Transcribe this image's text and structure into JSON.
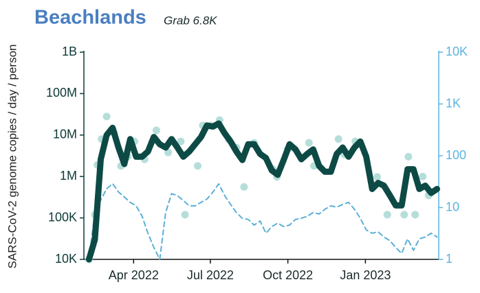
{
  "chart_data": {
    "type": "line",
    "title": "Beachlands",
    "subtitle": "Grab 6.8K",
    "y_label": "SARS-CoV-2 genome copies  / day / person",
    "log_y": true,
    "log_y2": true,
    "xlim": [
      "2022-02-01",
      "2023-03-29"
    ],
    "xticks": [
      {
        "value": "2022-04-01",
        "label": "Apr 2022"
      },
      {
        "value": "2022-07-01",
        "label": "Jul 2022"
      },
      {
        "value": "2022-10-01",
        "label": "Oct 2022"
      },
      {
        "value": "2023-01-01",
        "label": "Jan 2023"
      }
    ],
    "ylim": [
      10000,
      1000000000
    ],
    "yticks": [
      {
        "value": 10000,
        "label": "10K"
      },
      {
        "value": 100000,
        "label": "100K"
      },
      {
        "value": 1000000,
        "label": "1M"
      },
      {
        "value": 10000000,
        "label": "10M"
      },
      {
        "value": 100000000,
        "label": "100M"
      },
      {
        "value": 1000000000,
        "label": "1B"
      }
    ],
    "y2lim": [
      1,
      10000
    ],
    "y2ticks": [
      1,
      10,
      100,
      {
        "value": 1000,
        "label": "1K"
      },
      {
        "value": 10000,
        "label": "10K"
      }
    ],
    "axis_color": "#0d3a37",
    "y2_color": "#5ab4e0",
    "series": [
      {
        "style": "dashed",
        "axis": "y2",
        "color": "#5aafd6",
        "x": [
          "2022-02-07",
          "2022-02-14",
          "2022-02-21",
          "2022-02-28",
          "2022-03-07",
          "2022-03-14",
          "2022-03-21",
          "2022-03-28",
          "2022-04-04",
          "2022-04-11",
          "2022-04-18",
          "2022-04-25",
          "2022-05-02",
          "2022-05-09",
          "2022-05-16",
          "2022-05-23",
          "2022-05-30",
          "2022-06-06",
          "2022-06-13",
          "2022-06-20",
          "2022-06-27",
          "2022-07-04",
          "2022-07-11",
          "2022-07-18",
          "2022-07-25",
          "2022-08-01",
          "2022-08-08",
          "2022-08-15",
          "2022-08-22",
          "2022-08-29",
          "2022-09-05",
          "2022-09-12",
          "2022-09-19",
          "2022-09-26",
          "2022-10-03",
          "2022-10-10",
          "2022-10-17",
          "2022-10-24",
          "2022-10-31",
          "2022-11-07",
          "2022-11-14",
          "2022-11-21",
          "2022-11-28",
          "2022-12-05",
          "2022-12-12",
          "2022-12-19",
          "2022-12-26",
          "2023-01-02",
          "2023-01-09",
          "2023-01-16",
          "2023-01-23",
          "2023-01-30",
          "2023-02-06",
          "2023-02-13",
          "2023-02-20",
          "2023-02-27",
          "2023-03-06",
          "2023-03-13",
          "2023-03-20",
          "2023-03-27"
        ],
        "values": [
          1,
          8,
          14,
          23,
          29,
          20,
          16,
          12.6,
          10.8,
          6.8,
          3.2,
          1.7,
          1,
          8,
          18.6,
          17,
          13.7,
          10.8,
          10.8,
          12.6,
          14.6,
          19.8,
          28.6,
          17,
          11.5,
          8,
          6.2,
          5.9,
          4.6,
          5.5,
          3.2,
          4.3,
          5,
          4.3,
          4.6,
          5.9,
          6.2,
          6.8,
          8,
          7.5,
          9.3,
          10.8,
          10.2,
          11.5,
          12.6,
          9.3,
          6.2,
          3.7,
          3.2,
          3.4,
          2.7,
          2.3,
          1.7,
          1.3,
          2.5,
          1.5,
          2.5,
          2.7,
          3.2,
          2.7
        ]
      },
      {
        "style": "points",
        "axis": "y",
        "color": "#a8d8d4",
        "x": [
          "2022-02-07",
          "2022-02-14",
          "2022-02-17",
          "2022-02-22",
          "2022-02-28",
          "2022-03-09",
          "2022-03-17",
          "2022-03-25",
          "2022-04-02",
          "2022-04-14",
          "2022-04-28",
          "2022-05-12",
          "2022-05-27",
          "2022-06-01",
          "2022-06-16",
          "2022-06-22",
          "2022-07-01",
          "2022-07-12",
          "2022-07-23",
          "2022-08-01",
          "2022-08-10",
          "2022-08-22",
          "2022-09-13",
          "2022-09-18",
          "2022-10-01",
          "2022-10-26",
          "2022-11-01",
          "2022-11-30",
          "2022-12-07",
          "2022-12-20",
          "2023-01-15",
          "2023-01-27",
          "2023-02-16",
          "2023-02-21",
          "2023-03-01",
          "2023-03-10",
          "2023-03-17"
        ],
        "values": [
          10000,
          120000,
          1900000,
          8000000,
          28000000,
          11000000,
          1800000,
          3000000,
          7000000,
          2600000,
          13000000,
          3800000,
          7000000,
          120000,
          1800000,
          17000000,
          17000000,
          23000000,
          7800000,
          5000000,
          560000,
          6500000,
          1500000,
          980000,
          4600000,
          6500000,
          1800000,
          8000000,
          3400000,
          7000000,
          980000,
          120000,
          120000,
          3000000,
          120000,
          1000000,
          350000
        ]
      },
      {
        "style": "line",
        "axis": "y",
        "color": "#0d4a45",
        "x": [
          "2022-02-07",
          "2022-02-14",
          "2022-02-21",
          "2022-02-28",
          "2022-03-07",
          "2022-03-14",
          "2022-03-21",
          "2022-03-28",
          "2022-04-04",
          "2022-04-11",
          "2022-04-18",
          "2022-04-25",
          "2022-05-02",
          "2022-05-09",
          "2022-05-16",
          "2022-05-23",
          "2022-05-30",
          "2022-06-06",
          "2022-06-13",
          "2022-06-20",
          "2022-06-27",
          "2022-07-04",
          "2022-07-11",
          "2022-07-18",
          "2022-07-25",
          "2022-08-01",
          "2022-08-08",
          "2022-08-15",
          "2022-08-22",
          "2022-08-29",
          "2022-09-05",
          "2022-09-12",
          "2022-09-19",
          "2022-09-26",
          "2022-10-03",
          "2022-10-10",
          "2022-10-17",
          "2022-10-24",
          "2022-10-31",
          "2022-11-07",
          "2022-11-14",
          "2022-11-21",
          "2022-11-28",
          "2022-12-05",
          "2022-12-12",
          "2022-12-19",
          "2022-12-26",
          "2023-01-02",
          "2023-01-09",
          "2023-01-16",
          "2023-01-23",
          "2023-01-30",
          "2023-02-06",
          "2023-02-13",
          "2023-02-20",
          "2023-02-27",
          "2023-03-06",
          "2023-03-13",
          "2023-03-20",
          "2023-03-27"
        ],
        "values": [
          10000,
          30000,
          2600000,
          10000000,
          15000000,
          5000000,
          2000000,
          8000000,
          3000000,
          3000000,
          4000000,
          9000000,
          6000000,
          5000000,
          8000000,
          5000000,
          3000000,
          4000000,
          6000000,
          9000000,
          17000000,
          16000000,
          19000000,
          11000000,
          7000000,
          4000000,
          2500000,
          6000000,
          6000000,
          3500000,
          2800000,
          1400000,
          1100000,
          2500000,
          6000000,
          4500000,
          2600000,
          3500000,
          4500000,
          1800000,
          1300000,
          1300000,
          3500000,
          5000000,
          3000000,
          5000000,
          7000000,
          3000000,
          500000,
          700000,
          600000,
          350000,
          200000,
          200000,
          1500000,
          1500000,
          500000,
          600000,
          400000,
          500000
        ]
      }
    ]
  }
}
